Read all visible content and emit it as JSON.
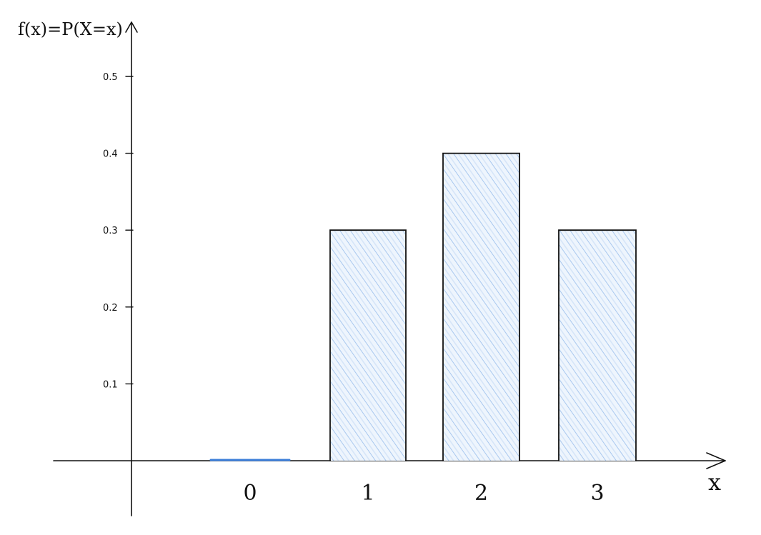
{
  "chart_data": {
    "type": "bar",
    "categories": [
      "0",
      "1",
      "2",
      "3"
    ],
    "values": [
      0,
      0.3,
      0.4,
      0.3
    ],
    "ylabel": "f(x)=P(X=x)",
    "xlabel": "x",
    "yticks": [
      "0.1",
      "0.2",
      "0.3",
      "0.4",
      "0.5"
    ],
    "ylim": [
      0,
      0.5
    ],
    "grid": false,
    "colors": {
      "fill": "#b9d3f3",
      "hatch": "#8fb7ea",
      "zero_bar": "#3b7dd8",
      "outline": "#111111"
    }
  }
}
